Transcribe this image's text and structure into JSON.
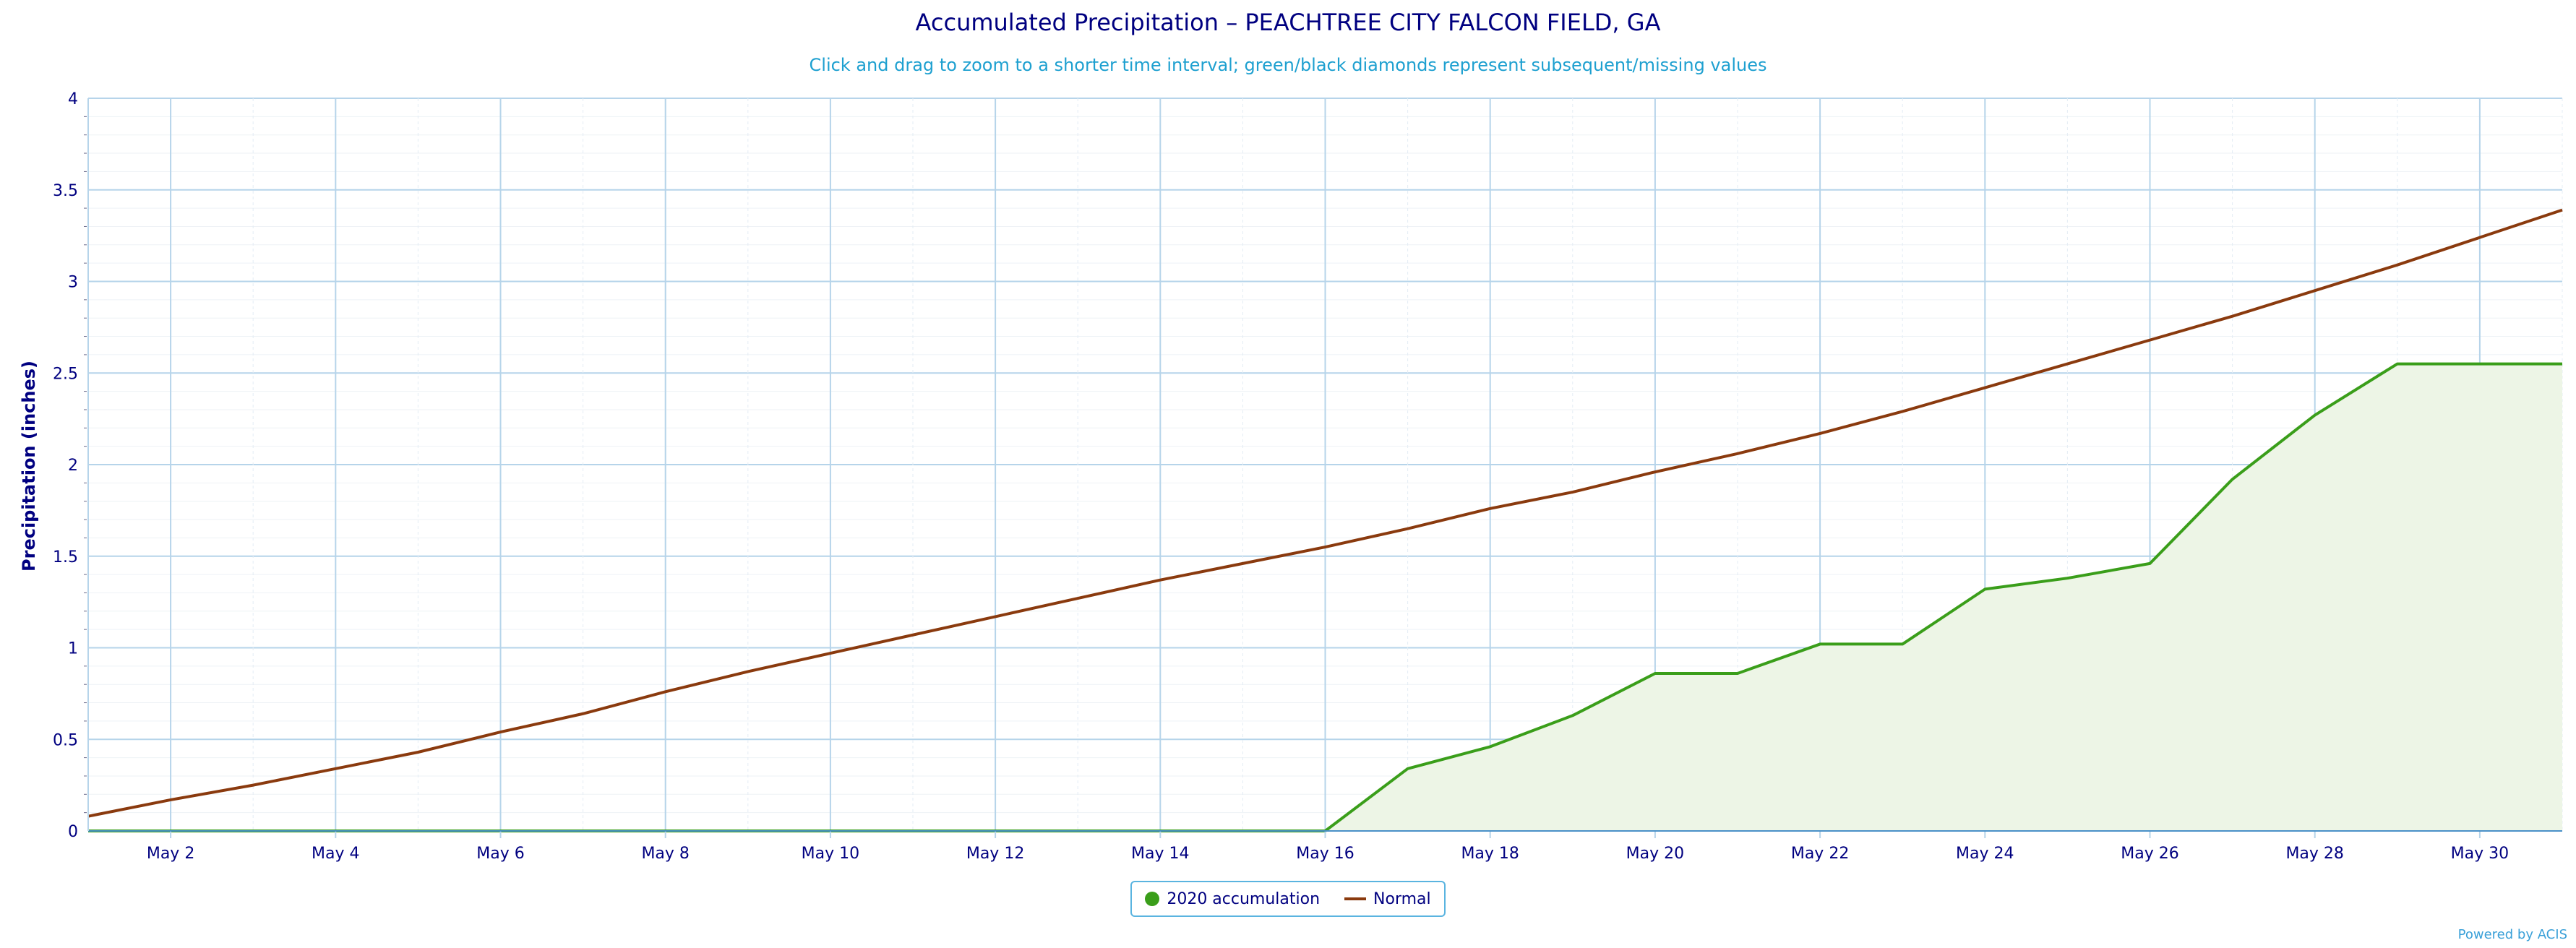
{
  "header": {
    "title": "Accumulated Precipitation – PEACHTREE CITY FALCON FIELD, GA",
    "subtitle": "Click and drag to zoom to a shorter time interval; green/black diamonds represent subsequent/missing values"
  },
  "footer": {
    "credit": "Powered by ACIS"
  },
  "colors": {
    "accumulation": "#3a9e1a",
    "accumulation_fill": "#edf5e6",
    "normal": "#8a3a0e",
    "axis_text": "#000080",
    "grid": "#b6d4ea"
  },
  "chart_data": {
    "type": "area",
    "title": "Accumulated Precipitation – PEACHTREE CITY FALCON FIELD, GA",
    "subtitle": "Click and drag to zoom to a shorter time interval; green/black diamonds represent subsequent/missing values",
    "xlabel": "",
    "ylabel": "Precipitation (inches)",
    "ylim": [
      0,
      4
    ],
    "yticks": [
      "0",
      "0.5",
      "1",
      "1.5",
      "2",
      "2.5",
      "3",
      "3.5",
      "4"
    ],
    "xlim": [
      "May 1",
      "May 31"
    ],
    "xtick_labels": [
      "May 2",
      "May 4",
      "May 6",
      "May 8",
      "May 10",
      "May 12",
      "May 14",
      "May 16",
      "May 18",
      "May 20",
      "May 22",
      "May 24",
      "May 26",
      "May 28",
      "May 30"
    ],
    "x": [
      1,
      2,
      3,
      4,
      5,
      6,
      7,
      8,
      9,
      10,
      11,
      12,
      13,
      14,
      15,
      16,
      17,
      18,
      19,
      20,
      21,
      22,
      23,
      24,
      25,
      26,
      27,
      28,
      29,
      30,
      31
    ],
    "grid": true,
    "legend_position": "bottom-center",
    "series": [
      {
        "name": "2020 accumulation",
        "type": "area",
        "values": [
          0,
          0,
          0,
          0,
          0,
          0,
          0,
          0,
          0,
          0,
          0,
          0,
          0,
          0,
          0,
          0,
          0.34,
          0.46,
          0.63,
          0.86,
          0.86,
          1.02,
          1.02,
          1.32,
          1.38,
          1.46,
          1.92,
          2.27,
          2.55,
          2.55,
          2.55
        ]
      },
      {
        "name": "Normal",
        "type": "line",
        "values": [
          0.08,
          0.17,
          0.25,
          0.34,
          0.43,
          0.54,
          0.64,
          0.76,
          0.87,
          0.97,
          1.07,
          1.17,
          1.27,
          1.37,
          1.46,
          1.55,
          1.65,
          1.76,
          1.85,
          1.96,
          2.06,
          2.17,
          2.29,
          2.42,
          2.55,
          2.68,
          2.81,
          2.95,
          3.09,
          3.24,
          3.39
        ]
      }
    ]
  }
}
